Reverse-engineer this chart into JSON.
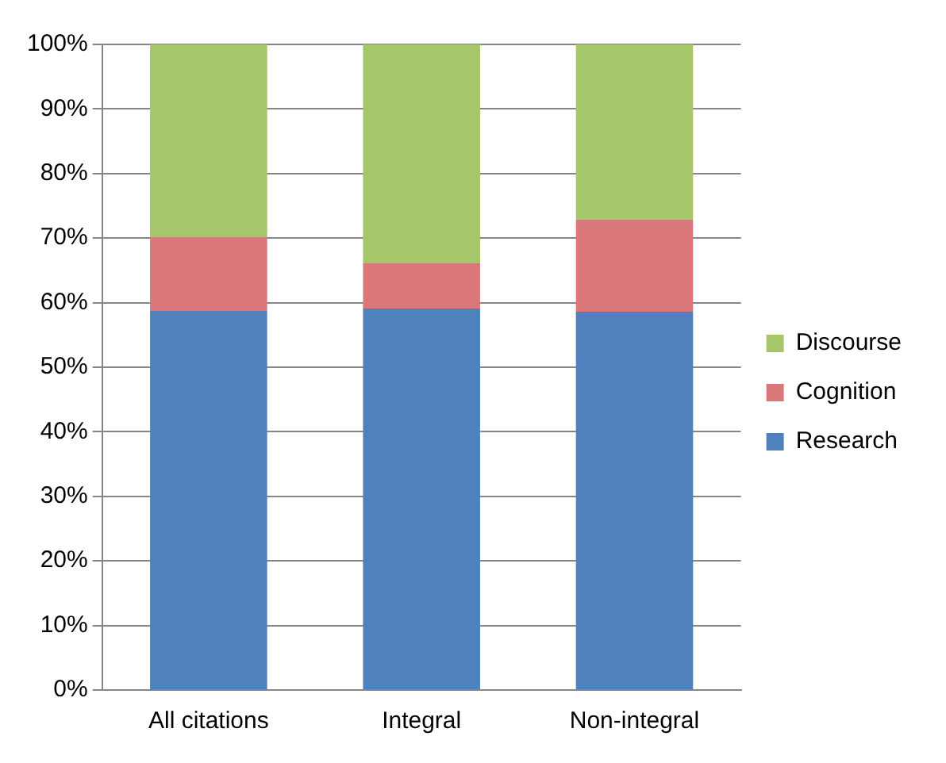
{
  "chart_data": {
    "type": "bar",
    "stacked": true,
    "categories": [
      "All citations",
      "Integral",
      "Non-integral"
    ],
    "series": [
      {
        "name": "Research",
        "color": "#4f81bd",
        "values": [
          58.8,
          59.1,
          58.6
        ]
      },
      {
        "name": "Cognition",
        "color": "#d9777a",
        "values": [
          11.4,
          7.0,
          14.3
        ]
      },
      {
        "name": "Discourse",
        "color": "#a5c76a",
        "values": [
          29.8,
          33.9,
          27.1
        ]
      }
    ],
    "ylim": [
      0,
      100
    ],
    "yticks": [
      {
        "value": 0,
        "label": "0%"
      },
      {
        "value": 10,
        "label": "10%"
      },
      {
        "value": 20,
        "label": "20%"
      },
      {
        "value": 30,
        "label": "30%"
      },
      {
        "value": 40,
        "label": "40%"
      },
      {
        "value": 50,
        "label": "50%"
      },
      {
        "value": 60,
        "label": "60%"
      },
      {
        "value": 70,
        "label": "70%"
      },
      {
        "value": 80,
        "label": "80%"
      },
      {
        "value": 90,
        "label": "90%"
      },
      {
        "value": 100,
        "label": "100%"
      }
    ],
    "grid": "y",
    "legend": "right"
  }
}
